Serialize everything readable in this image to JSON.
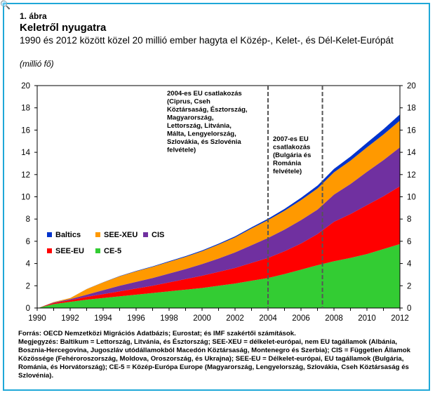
{
  "header": {
    "figure_label": "1. ábra",
    "title": "Keletről nyugatra",
    "subtitle": "1990 és 2012 között közel 20 millió ember hagyta el Közép-, Kelet-, és Dél-Kelet-Európát",
    "unit": "(millió fő)"
  },
  "chart_data": {
    "type": "area",
    "stacked": true,
    "x": [
      1990,
      1991,
      1992,
      1993,
      1994,
      1995,
      1996,
      1997,
      1998,
      1999,
      2000,
      2001,
      2002,
      2003,
      2004,
      2005,
      2006,
      2007,
      2008,
      2009,
      2010,
      2011,
      2012
    ],
    "series": [
      {
        "name": "CE-5",
        "color": "#33cc33",
        "values": [
          0,
          0.35,
          0.55,
          0.75,
          0.9,
          1.05,
          1.2,
          1.35,
          1.5,
          1.65,
          1.8,
          2.0,
          2.2,
          2.45,
          2.7,
          3.05,
          3.45,
          3.85,
          4.2,
          4.5,
          4.85,
          5.3,
          5.75
        ]
      },
      {
        "name": "SEE-EU",
        "color": "#ff0000",
        "values": [
          0,
          0.1,
          0.15,
          0.25,
          0.35,
          0.45,
          0.55,
          0.65,
          0.8,
          0.95,
          1.1,
          1.25,
          1.4,
          1.6,
          1.8,
          2.05,
          2.35,
          2.8,
          3.55,
          3.95,
          4.4,
          4.75,
          5.2
        ]
      },
      {
        "name": "CIS",
        "color": "#7030a0",
        "values": [
          0,
          0.05,
          0.1,
          0.2,
          0.35,
          0.5,
          0.6,
          0.7,
          0.8,
          0.9,
          1.05,
          1.2,
          1.4,
          1.6,
          1.8,
          1.95,
          2.1,
          2.2,
          2.45,
          2.7,
          3.0,
          3.25,
          3.5
        ]
      },
      {
        "name": "SEE-XEU",
        "color": "#ff9900",
        "values": [
          0,
          0.05,
          0.1,
          0.5,
          0.7,
          0.85,
          0.95,
          1.0,
          1.05,
          1.1,
          1.15,
          1.25,
          1.35,
          1.5,
          1.6,
          1.7,
          1.8,
          1.9,
          2.0,
          2.1,
          2.2,
          2.3,
          2.4
        ]
      },
      {
        "name": "Baltics",
        "color": "#0033cc",
        "values": [
          0,
          0.02,
          0.03,
          0.04,
          0.05,
          0.06,
          0.07,
          0.08,
          0.09,
          0.1,
          0.11,
          0.12,
          0.13,
          0.14,
          0.16,
          0.2,
          0.25,
          0.3,
          0.35,
          0.4,
          0.45,
          0.52,
          0.6
        ]
      }
    ],
    "x_ticks": [
      "1990",
      "1992",
      "1994",
      "1996",
      "1998",
      "2000",
      "2002",
      "2004",
      "2006",
      "2008",
      "2010",
      "2012"
    ],
    "y_ticks": [
      "0",
      "2",
      "4",
      "6",
      "8",
      "10",
      "12",
      "14",
      "16",
      "18",
      "20"
    ],
    "ylim": [
      0,
      20
    ],
    "xlim": [
      1990,
      2012
    ],
    "vlines": [
      2004,
      2007.3
    ],
    "legend_position": "bottom-left",
    "annotations": [
      {
        "id": "eu2004",
        "lines": [
          "2004-es  EU csatlakozás",
          "(Ciprus, Cseh",
          "Köztársaság, Észtország,",
          "Magyarország,",
          "Lettország, Litvánia,",
          "Málta, Lengyelország,",
          "Szlovákia, és Szlovénia",
          "felvétele)"
        ]
      },
      {
        "id": "eu2007",
        "lines": [
          "2007-es  EU",
          "csatlakozás",
          "(Bulgária és",
          "Románia",
          "felvétele)"
        ]
      }
    ]
  },
  "footer": {
    "source": "Forrás: OECD Nemzetközi Migrációs Adatbázis; Eurostat; és IMF szakértői számítások.",
    "note": "Megjegyzés: Baltikum = Lettország, Litvánia, és Észtország; SEE-XEU = délkelet-európai, nem EU tagállamok (Albánia, Bosznia-Hercegovina, Jugoszláv utódállamokból Macedón Köztársaság, Montenegro és Szerbia); CIS = Független Államok Közössége (Fehéroroszország, Moldova, Oroszország, és Ukrajna); SEE-EU = Délkelet-európai, EU tagállamok (Bulgária, Románia, és Horvátország); CE-5 = Közép-Európa Europe (Magyarország, Lengyelország, Szlovákia, Cseh Köztársaság és Szlovénia)."
  },
  "icons": {
    "zoom": "magnifier-icon"
  }
}
